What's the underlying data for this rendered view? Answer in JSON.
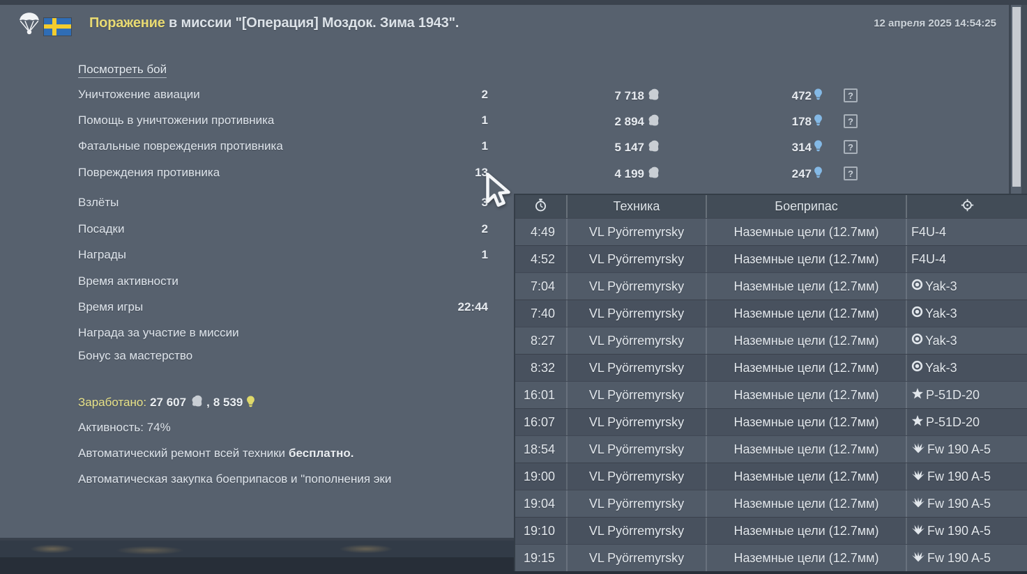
{
  "header": {
    "result": "Поражение",
    "title_rest": " в миссии \"[Операция] Моздок. Зима 1943\".",
    "datetime": "12 апреля 2025 14:54:25",
    "squadron_icon": "paratrooper-badge",
    "country_flag": "sweden-flag"
  },
  "stats": {
    "view_battle": "Посмотреть бой",
    "info_glyph": "?",
    "rows": [
      {
        "label": "Уничтожение авиации",
        "count": "2",
        "sl": "7 718",
        "rp": "472",
        "info": true
      },
      {
        "label": "Помощь в уничтожении противника",
        "count": "1",
        "sl": "2 894",
        "rp": "178",
        "info": true
      },
      {
        "label": "Фатальные повреждения противника",
        "count": "1",
        "sl": "5 147",
        "rp": "314",
        "info": true
      },
      {
        "label": "Повреждения противника",
        "count": "13",
        "sl": "4 199",
        "rp": "247",
        "info": true
      },
      {
        "label": "Взлёты",
        "count": "3",
        "sl": "",
        "rp": "",
        "info": false
      },
      {
        "label": "Посадки",
        "count": "2",
        "sl": "",
        "rp": "",
        "info": false
      },
      {
        "label": "Награды",
        "count": "1",
        "sl": "",
        "rp": "",
        "info": false
      },
      {
        "label": "Время активности",
        "count": "",
        "sl": "",
        "rp": "",
        "info": false
      },
      {
        "label": "Время игры",
        "count": "22:44",
        "sl": "",
        "rp": "",
        "info": false
      },
      {
        "label": "Награда за участие в миссии",
        "count": "",
        "sl": "",
        "rp": "",
        "info": false
      },
      {
        "label": "Бонус за мастерство",
        "count": "",
        "sl": "",
        "rp": "",
        "info": false
      }
    ]
  },
  "summary": {
    "earned_label": "Заработано:",
    "earned_sl": "27 607",
    "earned_sep": ",",
    "earned_rp": "8 539",
    "activity": "Активность: 74%",
    "repair_text": "Автоматический ремонт всей техники",
    "repair_bold": "бесплатно.",
    "ammo_line": "Автоматическая закупка боеприпасов и \"пополнения эки"
  },
  "damage_table": {
    "vehicle_header": "Техника",
    "ammo_header": "Боеприпас",
    "time_header_icon": "stopwatch-icon",
    "target_header_icon": "crosshair-icon",
    "rows": [
      {
        "time": "4:49",
        "vehicle": "VL Pyörremyrsky",
        "ammo": "Наземные цели (12.7мм)",
        "target": "F4U-4",
        "icon": "none"
      },
      {
        "time": "4:52",
        "vehicle": "VL Pyörremyrsky",
        "ammo": "Наземные цели (12.7мм)",
        "target": "F4U-4",
        "icon": "none"
      },
      {
        "time": "7:04",
        "vehicle": "VL Pyörremyrsky",
        "ammo": "Наземные цели (12.7мм)",
        "target": "Yak-3",
        "icon": "roundel"
      },
      {
        "time": "7:40",
        "vehicle": "VL Pyörremyrsky",
        "ammo": "Наземные цели (12.7мм)",
        "target": "Yak-3",
        "icon": "roundel"
      },
      {
        "time": "8:27",
        "vehicle": "VL Pyörremyrsky",
        "ammo": "Наземные цели (12.7мм)",
        "target": "Yak-3",
        "icon": "roundel"
      },
      {
        "time": "8:32",
        "vehicle": "VL Pyörremyrsky",
        "ammo": "Наземные цели (12.7мм)",
        "target": "Yak-3",
        "icon": "roundel"
      },
      {
        "time": "16:01",
        "vehicle": "VL Pyörremyrsky",
        "ammo": "Наземные цели (12.7мм)",
        "target": "P-51D-20",
        "icon": "star"
      },
      {
        "time": "16:07",
        "vehicle": "VL Pyörremyrsky",
        "ammo": "Наземные цели (12.7мм)",
        "target": "P-51D-20",
        "icon": "star"
      },
      {
        "time": "18:54",
        "vehicle": "VL Pyörremyrsky",
        "ammo": "Наземные цели (12.7мм)",
        "target": "Fw 190 A-5",
        "icon": "eagle"
      },
      {
        "time": "19:00",
        "vehicle": "VL Pyörremyrsky",
        "ammo": "Наземные цели (12.7мм)",
        "target": "Fw 190 A-5",
        "icon": "eagle"
      },
      {
        "time": "19:04",
        "vehicle": "VL Pyörremyrsky",
        "ammo": "Наземные цели (12.7мм)",
        "target": "Fw 190 A-5",
        "icon": "eagle"
      },
      {
        "time": "19:10",
        "vehicle": "VL Pyörremyrsky",
        "ammo": "Наземные цели (12.7мм)",
        "target": "Fw 190 A-5",
        "icon": "eagle"
      },
      {
        "time": "19:15",
        "vehicle": "VL Pyörremyrsky",
        "ammo": "Наземные цели (12.7мм)",
        "target": "Fw 190 A-5",
        "icon": "eagle"
      }
    ]
  },
  "colors": {
    "panel_bg": "#57616e",
    "defeat_yellow": "#e8da72",
    "rp_blue": "#84b9e6",
    "bulb_yellow": "#dfd96a",
    "silver_lion": "#c9ced4"
  }
}
